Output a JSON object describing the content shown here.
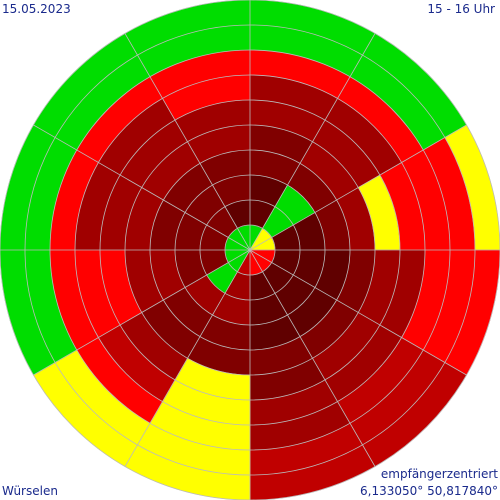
{
  "header": {
    "date": "15.05.2023",
    "time_range": "15 - 16 Uhr"
  },
  "footer": {
    "location": "Würselen",
    "mode": "empfängerzentriert",
    "coordinates": "6,133050° 50,817840°"
  },
  "colors": {
    "G": "#00dd00",
    "Y": "#ffff00",
    "R": "#ff0000",
    "D1": "#c00000",
    "D2": "#a00000",
    "D3": "#800000",
    "D4": "#600000",
    "grid": "#bbbbbb",
    "text": "#1a2a8c"
  },
  "chart_data": {
    "type": "polar-sector",
    "sectors": 12,
    "rings": 10,
    "ring_order": "inner-to-outer",
    "sector_order": "clockwise-from-north",
    "cells": [
      [
        "G",
        "D4",
        "D4",
        "D3",
        "D3",
        "D2",
        "D2",
        "R",
        "G",
        "G"
      ],
      [
        "Y",
        "G",
        "G",
        "D3",
        "D2",
        "D2",
        "D2",
        "R",
        "G",
        "G"
      ],
      [
        "Y",
        "D4",
        "D4",
        "D3",
        "D2",
        "Y",
        "R",
        "R",
        "R",
        "Y"
      ],
      [
        "R",
        "D4",
        "D4",
        "D4",
        "D3",
        "D2",
        "D2",
        "R",
        "R",
        "R"
      ],
      [
        "R",
        "D4",
        "D4",
        "D4",
        "D3",
        "D2",
        "D2",
        "D1",
        "D1",
        "D1"
      ],
      [
        "R",
        "D4",
        "D4",
        "D4",
        "D3",
        "D3",
        "D2",
        "D2",
        "D1",
        "D1"
      ],
      [
        "D1",
        "D2",
        "D2",
        "D3",
        "D3",
        "Y",
        "Y",
        "Y",
        "Y",
        "Y"
      ],
      [
        "G",
        "G",
        "D2",
        "D3",
        "D3",
        "D2",
        "D1",
        "R",
        "Y",
        "Y"
      ],
      [
        "G",
        "D3",
        "D3",
        "D2",
        "D2",
        "R",
        "R",
        "R",
        "G",
        "G"
      ],
      [
        "G",
        "D3",
        "D3",
        "D3",
        "D2",
        "D2",
        "D2",
        "R",
        "G",
        "G"
      ],
      [
        "G",
        "D3",
        "D3",
        "D3",
        "D2",
        "D2",
        "D2",
        "R",
        "G",
        "G"
      ],
      [
        "G",
        "D4",
        "D3",
        "D3",
        "D2",
        "D2",
        "R",
        "R",
        "G",
        "G"
      ]
    ]
  }
}
